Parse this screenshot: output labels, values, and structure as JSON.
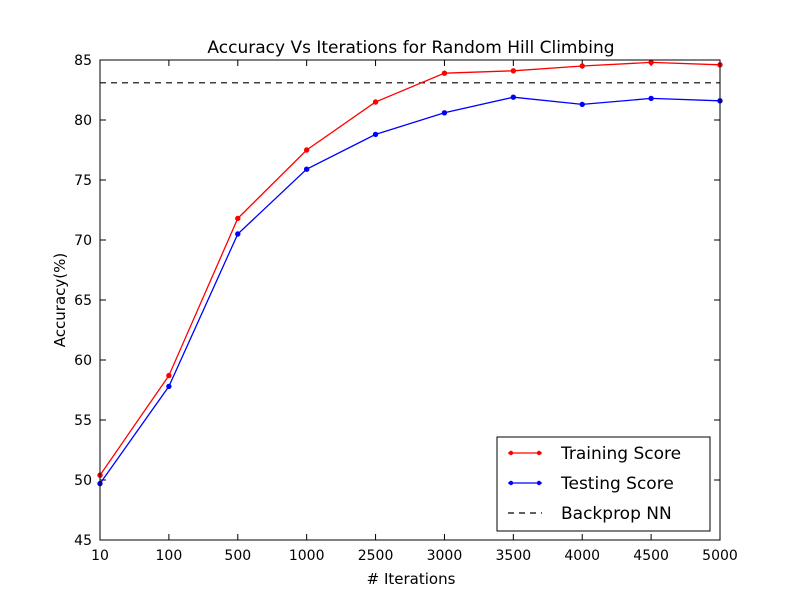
{
  "chart_data": {
    "type": "line",
    "title": "Accuracy Vs Iterations for Random Hill Climbing",
    "xlabel": "# Iterations",
    "ylabel": "Accuracy(%)",
    "categories": [
      "10",
      "100",
      "500",
      "1000",
      "2500",
      "3000",
      "3500",
      "4000",
      "4500",
      "5000"
    ],
    "ylim": [
      45,
      85
    ],
    "yticks": [
      45,
      50,
      55,
      60,
      65,
      70,
      75,
      80,
      85
    ],
    "series": [
      {
        "name": "Training Score",
        "color": "#ff0000",
        "marker": "dot",
        "values": [
          50.4,
          58.7,
          71.8,
          77.5,
          81.5,
          83.9,
          84.1,
          84.5,
          84.8,
          84.6
        ]
      },
      {
        "name": "Testing Score",
        "color": "#0000ff",
        "marker": "dot",
        "values": [
          49.7,
          57.8,
          70.5,
          75.9,
          78.8,
          80.6,
          81.9,
          81.3,
          81.8,
          81.6
        ]
      }
    ],
    "reference_line": {
      "name": "Backprop NN",
      "value": 83.1,
      "color": "#000000",
      "style": "dashed"
    },
    "legend_position": "lower-right",
    "grid": false
  }
}
